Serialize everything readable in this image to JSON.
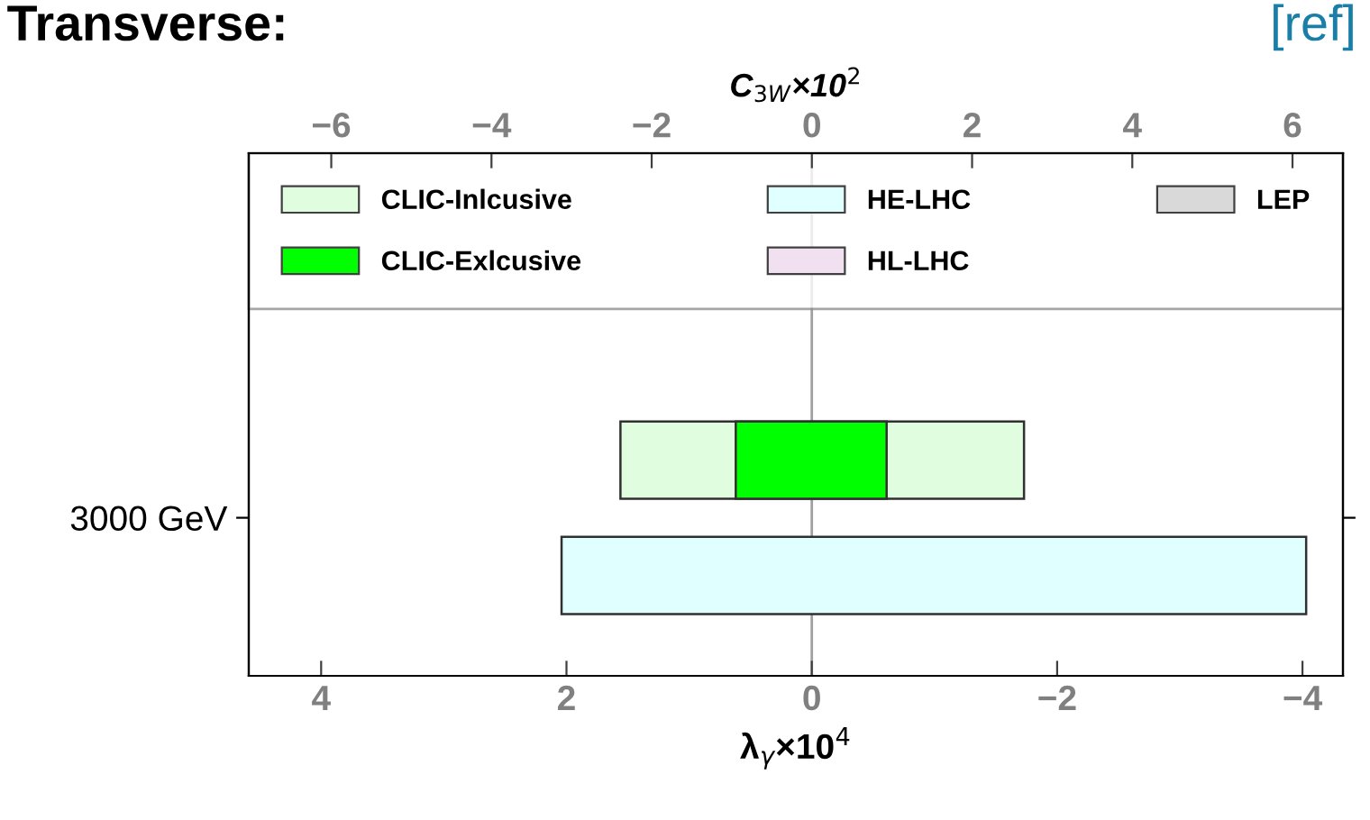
{
  "chart_data": {
    "type": "bar",
    "orientation": "horizontal",
    "title": "Transverse:",
    "annotations": [
      "[ref]"
    ],
    "xlabel": "λ$_{γ}$×10$^{4}$",
    "x2label": "C$_{3W}$×10$^{2}$",
    "categories": [
      "3000 GeV"
    ],
    "xlim": [
      4.59,
      -4.33
    ],
    "xticks": [
      4,
      2,
      0,
      {
        "value": -2,
        "label": "−2"
      },
      {
        "value": -4,
        "label": "−4"
      }
    ],
    "x2lim": [
      -7.03,
      6.63
    ],
    "x2ticks": [
      {
        "value": -6,
        "label": "−6"
      },
      {
        "value": -4,
        "label": "−4"
      },
      {
        "value": -2,
        "label": "−2"
      },
      0,
      2,
      4,
      6
    ],
    "ref_lines": [
      {
        "axis": "x",
        "value": 0,
        "label": null,
        "color": "#a0a0a0"
      }
    ],
    "legend": "top",
    "grid": false,
    "series": [
      {
        "name": "CLIC-Inlcusive",
        "color": "#e0fde0",
        "base": [
          1.56
        ],
        "values": [
          -3.29
        ]
      },
      {
        "name": "CLIC-Exlcusive",
        "color": "#00ff00",
        "base": [
          0.62
        ],
        "values": [
          -1.23
        ]
      },
      {
        "name": "HE-LHC",
        "color": "#e0ffff",
        "base": [
          2.04
        ],
        "values": [
          -6.07
        ]
      },
      {
        "name": "HL-LHC",
        "color": "#f0e0f0",
        "base": [
          null
        ],
        "values": [
          null
        ]
      },
      {
        "name": "LEP",
        "color": "#d9d9d9",
        "base": [
          null
        ],
        "values": [
          null
        ]
      }
    ]
  }
}
